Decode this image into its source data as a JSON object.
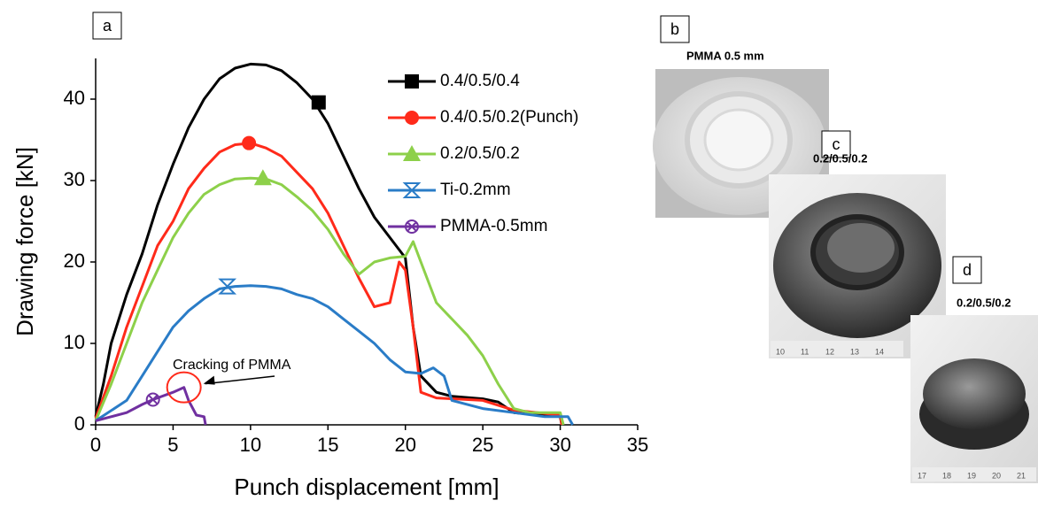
{
  "chart_data": {
    "type": "line",
    "panel_label": "a",
    "xlabel": "Punch displacement [mm]",
    "ylabel": "Drawing force [kN]",
    "xlim": [
      0,
      35
    ],
    "ylim": [
      0,
      45
    ],
    "xticks": [
      0,
      5,
      10,
      15,
      20,
      25,
      30,
      35
    ],
    "yticks": [
      0,
      10,
      20,
      30,
      40
    ],
    "legend": "upper-right",
    "annotation": "Cracking of PMMA",
    "series": [
      {
        "name": "0.4/0.5/0.4",
        "color": "#000000",
        "marker": "square",
        "marker_x": 14.4,
        "marker_y": 39.6,
        "x": [
          0,
          0.5,
          1,
          2,
          3,
          4,
          5,
          6,
          7,
          8,
          9,
          10,
          11,
          12,
          13,
          14,
          15,
          16,
          17,
          18,
          19,
          20,
          20.5,
          21,
          22,
          23,
          25,
          26,
          27,
          30,
          30.1
        ],
        "values": [
          1,
          5,
          10,
          16,
          21,
          27,
          32,
          36.5,
          40,
          42.5,
          43.8,
          44.3,
          44.2,
          43.5,
          42,
          40,
          37,
          33,
          29,
          25.5,
          23,
          20.5,
          12,
          6,
          4,
          3.5,
          3.2,
          2.8,
          1.5,
          1,
          0
        ]
      },
      {
        "name": "0.4/0.5/0.2(Punch)",
        "color": "#ff2a1a",
        "marker": "circle",
        "marker_x": 9.9,
        "marker_y": 34.6,
        "x": [
          0,
          1,
          2,
          3,
          4,
          5,
          6,
          7,
          8,
          9,
          10,
          11,
          12,
          13,
          14,
          15,
          16,
          17,
          18,
          19,
          19.6,
          20,
          20.5,
          21,
          22,
          25,
          27,
          30,
          30.1
        ],
        "values": [
          0.8,
          6,
          12,
          17,
          22,
          25,
          29,
          31.5,
          33.5,
          34.4,
          34.6,
          34,
          33,
          31,
          29,
          26,
          22,
          18,
          14.5,
          15,
          20,
          19,
          12,
          4,
          3.3,
          3,
          1.8,
          1.2,
          0
        ]
      },
      {
        "name": "0.2/0.5/0.2",
        "color": "#8dd04a",
        "marker": "triangle",
        "marker_x": 10.8,
        "marker_y": 30.3,
        "x": [
          0,
          1,
          2,
          3,
          4,
          5,
          6,
          7,
          8,
          9,
          10,
          11,
          12,
          13,
          14,
          15,
          16,
          17,
          18,
          19,
          20,
          20.5,
          21,
          22,
          23,
          24,
          25,
          26,
          27,
          28,
          30,
          30.2
        ],
        "values": [
          0.5,
          5,
          10,
          15,
          19,
          23,
          26,
          28.3,
          29.5,
          30.2,
          30.3,
          30.2,
          29.5,
          28,
          26.3,
          24,
          21,
          18.5,
          20,
          20.5,
          20.7,
          22.5,
          20,
          15,
          13,
          11,
          8.5,
          5,
          2,
          1.5,
          1.5,
          0
        ]
      },
      {
        "name": "Ti-0.2mm",
        "color": "#2a7cc7",
        "marker": "hourglass",
        "marker_x": 8.5,
        "marker_y": 17,
        "x": [
          0,
          2,
          3,
          4,
          5,
          6,
          7,
          8,
          9,
          10,
          11,
          12,
          13,
          14,
          15,
          16,
          17,
          18,
          19,
          20,
          21,
          21.8,
          22.5,
          23,
          25,
          27,
          29,
          30.5,
          30.8
        ],
        "values": [
          0.5,
          3,
          6,
          9,
          12,
          14,
          15.5,
          16.7,
          17,
          17.1,
          17,
          16.7,
          16,
          15.5,
          14.5,
          13,
          11.5,
          10,
          8,
          6.5,
          6.3,
          7,
          6,
          3,
          2,
          1.5,
          1,
          1,
          0
        ]
      },
      {
        "name": "PMMA-0.5mm",
        "color": "#7030a0",
        "marker": "crossed-circle",
        "marker_x": 3.7,
        "marker_y": 3.1,
        "x": [
          0,
          1,
          2,
          3,
          3.7,
          5,
          5.7,
          6,
          6.5,
          7,
          7.1
        ],
        "values": [
          0.5,
          1,
          1.5,
          2.5,
          3.1,
          4,
          4.6,
          3,
          1.2,
          1,
          0
        ]
      }
    ]
  },
  "photos": [
    {
      "label": "b",
      "caption": "PMMA 0.5 mm"
    },
    {
      "label": "c",
      "caption": "0.2/0.5/0.2",
      "ruler": [
        "10",
        "11",
        "12",
        "13",
        "14"
      ]
    },
    {
      "label": "d",
      "caption": "0.2/0.5/0.2",
      "ruler": [
        "17",
        "18",
        "19",
        "20",
        "21"
      ]
    }
  ]
}
